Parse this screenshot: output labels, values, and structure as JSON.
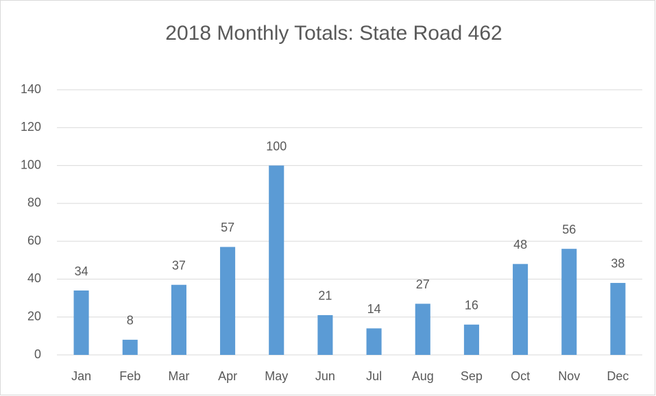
{
  "chart_data": {
    "type": "bar",
    "title": "2018 Monthly Totals: State Road 462",
    "categories": [
      "Jan",
      "Feb",
      "Mar",
      "Apr",
      "May",
      "Jun",
      "Jul",
      "Aug",
      "Sep",
      "Oct",
      "Nov",
      "Dec"
    ],
    "values": [
      34,
      8,
      37,
      57,
      100,
      21,
      14,
      27,
      16,
      48,
      56,
      38
    ],
    "color": "#5b9bd5",
    "ylim": [
      0,
      140
    ],
    "yticks": [
      0,
      20,
      40,
      60,
      80,
      100,
      120,
      140
    ],
    "grid": true,
    "data_labels": true
  }
}
